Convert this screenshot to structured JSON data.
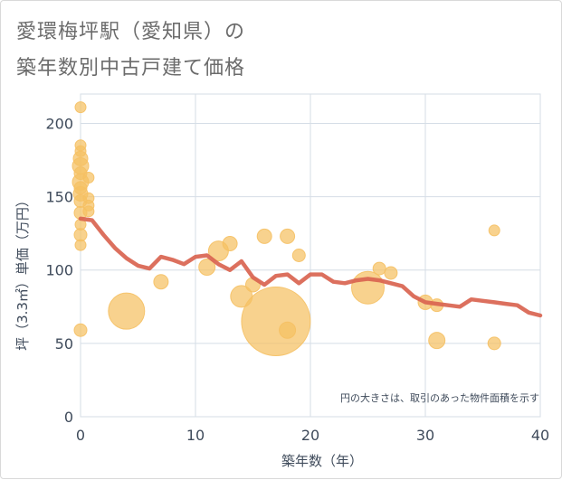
{
  "title": {
    "line1": "愛環梅坪駅（愛知県）の",
    "line2": "築年数別中古戸建て価格"
  },
  "chart_data": {
    "type": "scatter",
    "xlabel": "築年数（年）",
    "ylabel": "坪（3.3㎡）単価（万円）",
    "xlim": [
      0,
      40
    ],
    "ylim": [
      0,
      220
    ],
    "xticks": [
      0,
      10,
      20,
      30,
      40
    ],
    "yticks": [
      0,
      50,
      100,
      150,
      200
    ],
    "grid": true,
    "note": "円の大きさは、取引のあった物件面積を示す",
    "colors": {
      "bubble": "#f5c063",
      "line": "#d96450",
      "grid": "#d5dde6"
    },
    "points": [
      {
        "x": 0,
        "y": 211,
        "s": 6
      },
      {
        "x": 0,
        "y": 185,
        "s": 6
      },
      {
        "x": 0,
        "y": 181,
        "s": 6
      },
      {
        "x": 0,
        "y": 176,
        "s": 8
      },
      {
        "x": 0,
        "y": 171,
        "s": 9
      },
      {
        "x": 0,
        "y": 166,
        "s": 7
      },
      {
        "x": 0,
        "y": 160,
        "s": 9
      },
      {
        "x": 0,
        "y": 156,
        "s": 7
      },
      {
        "x": 0,
        "y": 152,
        "s": 8
      },
      {
        "x": 0,
        "y": 147,
        "s": 7
      },
      {
        "x": 0,
        "y": 139,
        "s": 7
      },
      {
        "x": 0,
        "y": 131,
        "s": 6
      },
      {
        "x": 0,
        "y": 124,
        "s": 7
      },
      {
        "x": 0,
        "y": 117,
        "s": 6
      },
      {
        "x": 0,
        "y": 59,
        "s": 7
      },
      {
        "x": 0.7,
        "y": 163,
        "s": 6
      },
      {
        "x": 0.7,
        "y": 149,
        "s": 6
      },
      {
        "x": 0.7,
        "y": 144,
        "s": 6
      },
      {
        "x": 0.7,
        "y": 140,
        "s": 6
      },
      {
        "x": 4,
        "y": 72,
        "s": 20
      },
      {
        "x": 7,
        "y": 92,
        "s": 8
      },
      {
        "x": 11,
        "y": 102,
        "s": 9
      },
      {
        "x": 12,
        "y": 113,
        "s": 11
      },
      {
        "x": 13,
        "y": 118,
        "s": 8
      },
      {
        "x": 14,
        "y": 82,
        "s": 12
      },
      {
        "x": 15,
        "y": 90,
        "s": 8
      },
      {
        "x": 16,
        "y": 123,
        "s": 8
      },
      {
        "x": 17,
        "y": 65,
        "s": 38
      },
      {
        "x": 18,
        "y": 123,
        "s": 8
      },
      {
        "x": 18,
        "y": 59,
        "s": 9
      },
      {
        "x": 19,
        "y": 110,
        "s": 7
      },
      {
        "x": 25,
        "y": 88,
        "s": 18
      },
      {
        "x": 26,
        "y": 101,
        "s": 7
      },
      {
        "x": 27,
        "y": 98,
        "s": 7
      },
      {
        "x": 30,
        "y": 78,
        "s": 8
      },
      {
        "x": 31,
        "y": 76,
        "s": 7
      },
      {
        "x": 31,
        "y": 52,
        "s": 9
      },
      {
        "x": 36,
        "y": 127,
        "s": 6
      },
      {
        "x": 36,
        "y": 50,
        "s": 7
      }
    ],
    "trend": [
      {
        "x": 0,
        "y": 135
      },
      {
        "x": 1,
        "y": 134
      },
      {
        "x": 2,
        "y": 124
      },
      {
        "x": 3,
        "y": 115
      },
      {
        "x": 4,
        "y": 108
      },
      {
        "x": 5,
        "y": 103
      },
      {
        "x": 6,
        "y": 101
      },
      {
        "x": 7,
        "y": 109
      },
      {
        "x": 8,
        "y": 107
      },
      {
        "x": 9,
        "y": 104
      },
      {
        "x": 10,
        "y": 109
      },
      {
        "x": 11,
        "y": 110
      },
      {
        "x": 12,
        "y": 104
      },
      {
        "x": 13,
        "y": 100
      },
      {
        "x": 14,
        "y": 106
      },
      {
        "x": 15,
        "y": 95
      },
      {
        "x": 16,
        "y": 90
      },
      {
        "x": 17,
        "y": 96
      },
      {
        "x": 18,
        "y": 97
      },
      {
        "x": 19,
        "y": 91
      },
      {
        "x": 20,
        "y": 97
      },
      {
        "x": 21,
        "y": 97
      },
      {
        "x": 22,
        "y": 92
      },
      {
        "x": 23,
        "y": 91
      },
      {
        "x": 24,
        "y": 93
      },
      {
        "x": 25,
        "y": 94
      },
      {
        "x": 26,
        "y": 93
      },
      {
        "x": 27,
        "y": 91
      },
      {
        "x": 28,
        "y": 89
      },
      {
        "x": 29,
        "y": 82
      },
      {
        "x": 30,
        "y": 78
      },
      {
        "x": 31,
        "y": 77
      },
      {
        "x": 32,
        "y": 76
      },
      {
        "x": 33,
        "y": 75
      },
      {
        "x": 34,
        "y": 80
      },
      {
        "x": 35,
        "y": 79
      },
      {
        "x": 36,
        "y": 78
      },
      {
        "x": 37,
        "y": 77
      },
      {
        "x": 38,
        "y": 76
      },
      {
        "x": 39,
        "y": 71
      },
      {
        "x": 40,
        "y": 69
      }
    ]
  }
}
